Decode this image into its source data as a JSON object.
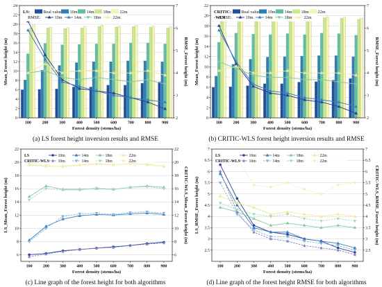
{
  "palette": {
    "real": "#1f4e9e",
    "10m": "#2e7fb4",
    "14m": "#5fbfa3",
    "18m": "#c8ea8f",
    "22m": "#f7f5b0",
    "rmse10": "#2a3f95",
    "rmse14": "#3d7fbf",
    "rmse18": "#84c9a0",
    "rmse22": "#eeea9a",
    "cw10": "#7b7fc2",
    "cw14": "#87b2d6",
    "cw18": "#a8d8b8",
    "cw22": "#f2ecb4"
  },
  "chart_data": [
    {
      "id": "a",
      "type": "bar",
      "caption": "(a) LS forest height inversion results and RMSE",
      "legend_title": "LS:",
      "rmse_label": "RMSE:",
      "categories": [
        "100",
        "200",
        "300",
        "400",
        "500",
        "600",
        "700",
        "800",
        "900"
      ],
      "xlabel": "Forest density (stems/ha)",
      "ylabel": "Mean_Forest height (m)",
      "y2label": "RMSE_Forest height (m)",
      "ylim": [
        0,
        24
      ],
      "yticks": [
        0,
        2,
        4,
        6,
        8,
        10,
        12,
        14,
        16,
        18,
        20,
        22,
        24
      ],
      "y2lim": [
        2,
        7
      ],
      "y2ticks": [
        2,
        3,
        4,
        5,
        6,
        7
      ],
      "bar_series": [
        {
          "name": "Real value",
          "values": [
            6.0,
            6.1,
            6.2,
            6.6,
            6.6,
            7.0,
            7.0,
            7.4,
            7.7
          ]
        },
        {
          "name": "10m",
          "values": [
            8.1,
            10.2,
            11.2,
            11.8,
            12.0,
            12.0,
            12.2,
            12.2,
            12.0
          ]
        },
        {
          "name": "14m",
          "values": [
            13.7,
            15.9,
            15.6,
            15.7,
            15.8,
            15.8,
            16.0,
            16.0,
            15.8
          ]
        },
        {
          "name": "18m",
          "values": [
            19.2,
            19.2,
            19.1,
            19.2,
            19.5,
            19.4,
            19.5,
            19.4,
            19.2
          ]
        },
        {
          "name": "22m",
          "values": [
            19.9,
            19.4,
            19.3,
            19.6,
            19.8,
            19.6,
            19.8,
            19.6,
            19.5
          ]
        }
      ],
      "line_series": [
        {
          "name": "10m",
          "values": [
            6.3,
            4.8,
            3.7,
            3.3,
            3.2,
            3.1,
            2.9,
            2.7,
            2.4
          ]
        },
        {
          "name": "14m",
          "values": [
            5.9,
            4.6,
            3.6,
            3.4,
            3.2,
            3.0,
            2.9,
            2.8,
            2.7
          ]
        },
        {
          "name": "18m",
          "values": [
            4.0,
            4.1,
            3.8,
            3.7,
            3.8,
            3.7,
            3.6,
            3.7,
            3.5
          ]
        },
        {
          "name": "22m",
          "values": [
            4.0,
            4.4,
            4.0,
            4.1,
            4.1,
            4.0,
            4.0,
            4.1,
            3.9
          ]
        }
      ]
    },
    {
      "id": "b",
      "type": "bar",
      "caption": "(b) CRITIC-WLS forest height inversion results and RMSE",
      "legend_title": "CRITIC:",
      "legend_title_2": "-WLS",
      "real_label": "Real value",
      "rmse_label": "RMSE:",
      "categories": [
        "100",
        "200",
        "300",
        "400",
        "500",
        "600",
        "700",
        "800",
        "900"
      ],
      "xlabel": "Forest density (stems/ha)",
      "ylabel": "Mean_Forest height (m)",
      "y2label": "RMSE_Forest height (m)",
      "ylim": [
        0,
        22
      ],
      "yticks": [
        0,
        2,
        4,
        6,
        8,
        10,
        12,
        14,
        16,
        18,
        20,
        22
      ],
      "y2lim": [
        2,
        7
      ],
      "y2ticks": [
        2,
        3,
        4,
        5,
        6,
        7
      ],
      "bar_series": [
        {
          "name": "Real value",
          "values": [
            6.0,
            6.1,
            6.3,
            6.7,
            6.7,
            7.0,
            7.1,
            7.4,
            7.7
          ]
        },
        {
          "name": "10m",
          "values": [
            8.2,
            10.5,
            11.5,
            11.9,
            12.0,
            12.1,
            12.2,
            12.2,
            12.0
          ]
        },
        {
          "name": "14m",
          "values": [
            14.8,
            16.6,
            16.4,
            16.3,
            16.5,
            16.3,
            16.6,
            16.5,
            16.2
          ]
        },
        {
          "name": "18m",
          "values": [
            19.3,
            19.3,
            19.3,
            19.5,
            19.6,
            19.5,
            19.6,
            19.5,
            19.3
          ]
        },
        {
          "name": "22m",
          "values": [
            19.9,
            19.5,
            19.4,
            19.7,
            19.8,
            19.7,
            19.8,
            19.7,
            19.6
          ]
        }
      ],
      "line_series": [
        {
          "name": "10m",
          "values": [
            6.1,
            4.4,
            3.4,
            3.1,
            3.0,
            2.8,
            2.7,
            2.5,
            2.2
          ]
        },
        {
          "name": "14m",
          "values": [
            5.9,
            4.5,
            3.5,
            3.2,
            3.1,
            2.9,
            2.8,
            2.7,
            2.5
          ]
        },
        {
          "name": "18m",
          "values": [
            4.5,
            4.2,
            3.9,
            3.8,
            3.8,
            3.7,
            3.7,
            3.6,
            3.5
          ]
        },
        {
          "name": "22m",
          "values": [
            4.1,
            4.3,
            4.0,
            4.0,
            4.1,
            4.0,
            4.0,
            4.0,
            3.9
          ]
        }
      ]
    },
    {
      "id": "c",
      "type": "line",
      "caption": "(c) Line graph of the forest height for both algorithms",
      "legend_rows": [
        {
          "label": "LS",
          "keys": [
            "10m",
            "14m",
            "18m",
            "22m"
          ]
        },
        {
          "label": "CRITIC-WLS",
          "keys": [
            "10m",
            "14m",
            "18m",
            "22m"
          ]
        }
      ],
      "categories": [
        "100",
        "200",
        "300",
        "400",
        "500",
        "600",
        "700",
        "800",
        "900"
      ],
      "xlabel": "Forest density (stems/ha)",
      "ylabel": "LS_Mean_Forest height (m)",
      "y2label": "CRITIC-WLS_Mean_Forest height (m)",
      "ylim": [
        5,
        22
      ],
      "yticks": [
        6,
        8,
        10,
        12,
        14,
        16,
        18,
        20,
        22
      ],
      "y2lim": [
        5,
        22
      ],
      "y2ticks": [
        6,
        8,
        10,
        12,
        14,
        16,
        18,
        20,
        22
      ],
      "ls_series": [
        {
          "name": "10m",
          "values": [
            6.0,
            6.2,
            6.6,
            6.8,
            7.0,
            7.2,
            7.4,
            7.7,
            7.9
          ]
        },
        {
          "name": "14m",
          "values": [
            8.2,
            10.3,
            11.4,
            11.9,
            12.1,
            12.0,
            12.2,
            12.3,
            12.1
          ]
        },
        {
          "name": "18m",
          "values": [
            14.8,
            16.4,
            15.9,
            15.9,
            16.0,
            15.9,
            16.2,
            16.4,
            16.2
          ]
        },
        {
          "name": "22m",
          "values": [
            19.6,
            19.4,
            19.4,
            19.6,
            19.8,
            19.6,
            19.8,
            19.7,
            19.4
          ]
        }
      ],
      "cw_series": [
        {
          "name": "10m",
          "values": [
            5.7,
            6.1,
            6.5,
            6.8,
            7.0,
            7.1,
            7.4,
            7.6,
            7.8
          ]
        },
        {
          "name": "14m",
          "values": [
            8.0,
            10.0,
            11.8,
            12.2,
            12.3,
            12.1,
            12.4,
            12.5,
            12.3
          ]
        },
        {
          "name": "18m",
          "values": [
            14.3,
            16.0,
            15.8,
            15.8,
            16.1,
            15.9,
            16.2,
            16.3,
            16.0
          ]
        },
        {
          "name": "22m",
          "values": [
            19.8,
            19.5,
            19.3,
            19.5,
            19.7,
            19.6,
            19.8,
            19.6,
            19.3
          ]
        }
      ]
    },
    {
      "id": "d",
      "type": "line",
      "caption": "(d) Line graph of the forest height RMSE for both algorithms",
      "legend_rows": [
        {
          "label": "LS",
          "keys": [
            "10m",
            "14m",
            "18m",
            "22m"
          ]
        },
        {
          "label": "CRITIC-WLS",
          "keys": [
            "10m",
            "14m",
            "18m",
            "22m"
          ]
        }
      ],
      "categories": [
        "100",
        "200",
        "300",
        "400",
        "500",
        "600",
        "700",
        "800",
        "900"
      ],
      "xlabel": "Forest density (stems/ha)",
      "ylabel": "LS_RMSE_Forest height (m)",
      "y2label": "CRITIC-WLS_RMSE_Forest height (m)",
      "ylim": [
        2,
        7
      ],
      "yticks": [
        2.5,
        3,
        3.5,
        4,
        4.5,
        5,
        5.5,
        6,
        6.5,
        7
      ],
      "y2lim": [
        2,
        7
      ],
      "y2ticks": [
        2.5,
        3,
        3.5,
        4,
        4.5,
        5,
        5.5,
        6,
        6.5,
        7
      ],
      "ls_series": [
        {
          "name": "10m",
          "values": [
            6.3,
            4.8,
            3.6,
            3.3,
            3.2,
            3.0,
            2.9,
            2.6,
            2.4
          ]
        },
        {
          "name": "14m",
          "values": [
            5.9,
            4.5,
            3.5,
            3.3,
            3.3,
            3.0,
            2.9,
            2.8,
            2.6
          ]
        },
        {
          "name": "18m",
          "values": [
            4.4,
            4.2,
            3.9,
            3.6,
            3.7,
            3.6,
            3.5,
            3.6,
            3.5
          ]
        },
        {
          "name": "22m",
          "values": [
            4.9,
            4.6,
            4.4,
            4.1,
            4.2,
            4.1,
            4.0,
            4.1,
            4.0
          ]
        }
      ],
      "cw_series": [
        {
          "name": "10m",
          "values": [
            6.0,
            4.2,
            3.3,
            3.0,
            2.9,
            2.7,
            2.6,
            2.5,
            2.3
          ]
        },
        {
          "name": "14m",
          "values": [
            5.5,
            4.1,
            3.4,
            3.1,
            3.1,
            2.9,
            2.8,
            2.7,
            2.5
          ]
        },
        {
          "name": "18m",
          "values": [
            4.6,
            4.3,
            4.1,
            4.0,
            4.1,
            3.9,
            3.8,
            3.9,
            3.8
          ]
        },
        {
          "name": "22m",
          "values": [
            6.7,
            6.6,
            5.4,
            5.3,
            5.5,
            5.2,
            5.0,
            5.4,
            5.5
          ]
        }
      ]
    }
  ]
}
